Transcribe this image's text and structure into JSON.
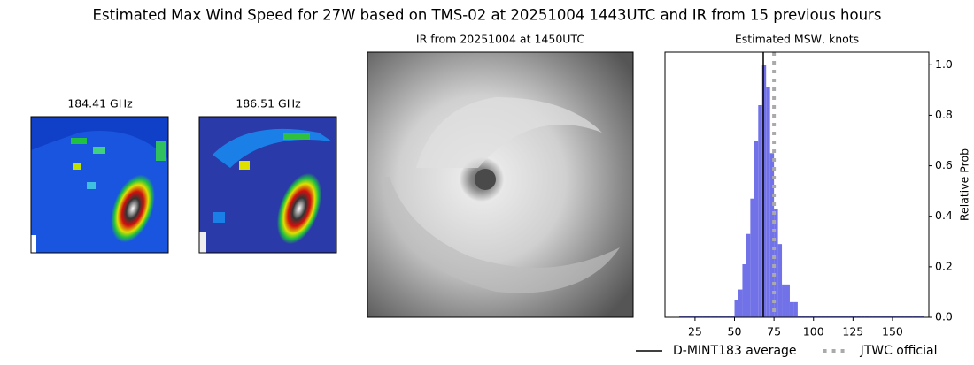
{
  "title": "Estimated Max Wind Speed for 27W based on TMS-02 at 20251004 1443UTC and IR from 15 previous hours",
  "panels": [
    {
      "title": "184.41 GHz"
    },
    {
      "title": "186.51 GHz"
    },
    {
      "title": "IR from 20251004 at 1450UTC"
    }
  ],
  "chart_data": {
    "type": "histogram",
    "title": "Estimated MSW, knots",
    "y_label": "Relative Prob",
    "bins": [
      15,
      17.5,
      20,
      22.5,
      25,
      27.5,
      30,
      32.5,
      35,
      37.5,
      40,
      42.5,
      45,
      47.5,
      50,
      52.5,
      55,
      57.5,
      60,
      62.5,
      65,
      67.5,
      70,
      72.5,
      75,
      77.5,
      80,
      82.5,
      85,
      87.5,
      90,
      92.5,
      95,
      97.5,
      100,
      102.5,
      105,
      107.5,
      110,
      112.5,
      115,
      117.5,
      120,
      122.5,
      125,
      127.5,
      130,
      132.5,
      135,
      137.5,
      140,
      142.5,
      145,
      147.5,
      150,
      152.5,
      155,
      157.5,
      160,
      162.5,
      165,
      167.5,
      170
    ],
    "values": [
      0.005,
      0.005,
      0.005,
      0.005,
      0.005,
      0.005,
      0.005,
      0.005,
      0.005,
      0.005,
      0.005,
      0.005,
      0.005,
      0.005,
      0.07,
      0.11,
      0.21,
      0.33,
      0.47,
      0.7,
      0.84,
      1.0,
      0.91,
      0.65,
      0.43,
      0.29,
      0.13,
      0.13,
      0.06,
      0.06,
      0.005,
      0.005,
      0.005,
      0.005,
      0.005,
      0.005,
      0.005,
      0.005,
      0.005,
      0.005,
      0.005,
      0.005,
      0.005,
      0.005,
      0.005,
      0.005,
      0.005,
      0.005,
      0.005,
      0.005,
      0.005,
      0.005,
      0.005,
      0.005,
      0.005,
      0.005,
      0.005,
      0.005,
      0.005,
      0.005,
      0.005,
      0.005
    ],
    "color": "#7272e8",
    "xlim": [
      6,
      173
    ],
    "ylim": [
      0,
      1.05
    ],
    "xticks": [
      25,
      50,
      75,
      100,
      125,
      150
    ],
    "yticks": [
      {
        "value": 0,
        "label": "0.0"
      },
      0.2,
      0.4,
      0.6,
      0.8,
      {
        "value": 1,
        "label": "1.0"
      }
    ],
    "lines": [
      {
        "name": "D-MINT183 average",
        "value": 68.2,
        "color": "#000000",
        "style": "solid"
      },
      {
        "name": "JTWC official",
        "value": 75,
        "color": "#aaaaaa",
        "style": "dotted"
      }
    ],
    "legend": "lower right"
  }
}
